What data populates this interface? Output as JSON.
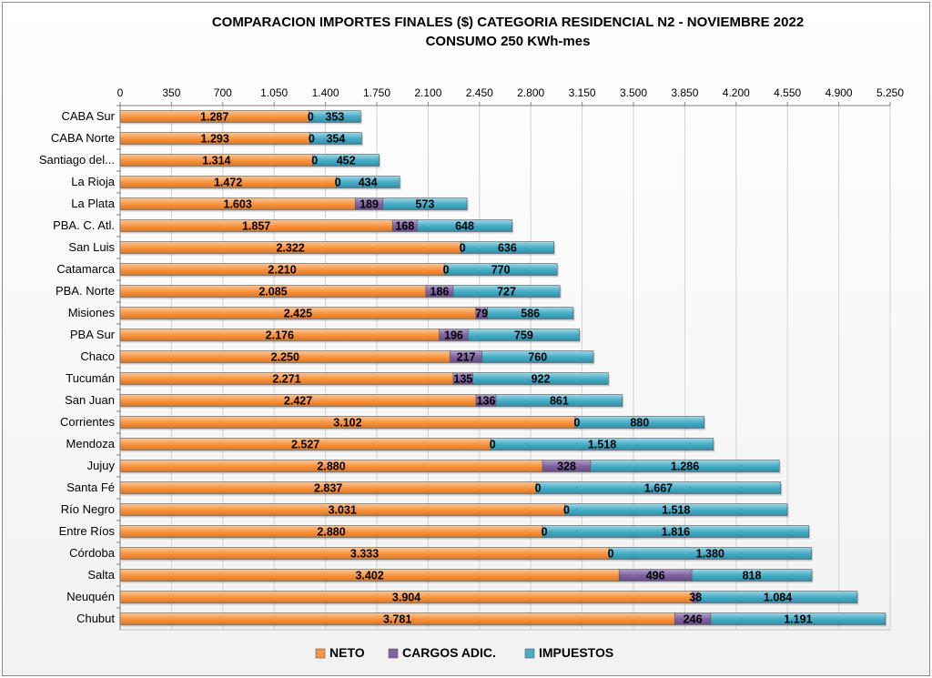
{
  "chart_data": {
    "type": "bar",
    "orientation": "horizontal",
    "stacked": true,
    "title": "COMPARACION IMPORTES FINALES ($) CATEGORIA RESIDENCIAL N2 -  NOVIEMBRE 2022",
    "subtitle": "CONSUMO 250 KWh-mes",
    "xlim": [
      0,
      5250
    ],
    "x_ticks": [
      "0",
      "350",
      "700",
      "1.050",
      "1.400",
      "1.750",
      "2.100",
      "2.450",
      "2.800",
      "3.150",
      "3.500",
      "3.850",
      "4.200",
      "4.550",
      "4.900",
      "5.250"
    ],
    "x_axis_position": "top",
    "grid": true,
    "legend_position": "bottom",
    "categories": [
      "CABA Sur",
      "CABA Norte",
      "Santiago del...",
      "La Rioja",
      "La Plata",
      "PBA. C. Atl.",
      "San Luis",
      "Catamarca",
      "PBA. Norte",
      "Misiones",
      "PBA Sur",
      "Chaco",
      "Tucumán",
      "San Juan",
      "Corrientes",
      "Mendoza",
      "Jujuy",
      "Santa Fé",
      "Río Negro",
      "Entre Ríos",
      "Córdoba",
      "Salta",
      "Neuquén",
      "Chubut"
    ],
    "series": [
      {
        "name": "NETO",
        "color": "#f79646",
        "values": [
          1287,
          1293,
          1314,
          1472,
          1603,
          1857,
          2322,
          2210,
          2085,
          2425,
          2176,
          2250,
          2271,
          2427,
          3102,
          2527,
          2880,
          2837,
          3031,
          2880,
          3333,
          3402,
          3904,
          3781
        ],
        "labels": [
          "1.287",
          "1.293",
          "1.314",
          "1.472",
          "1.603",
          "1.857",
          "2.322",
          "2.210",
          "2.085",
          "2.425",
          "2.176",
          "2.250",
          "2.271",
          "2.427",
          "3.102",
          "2.527",
          "2.880",
          "2.837",
          "3.031",
          "2.880",
          "3.333",
          "3.402",
          "3.904",
          "3.781"
        ]
      },
      {
        "name": "CARGOS ADIC.",
        "color": "#8064a2",
        "values": [
          0,
          0,
          0,
          0,
          189,
          168,
          0,
          0,
          186,
          79,
          196,
          217,
          135,
          136,
          0,
          0,
          328,
          0,
          0,
          0,
          0,
          496,
          38,
          246
        ],
        "labels": [
          "0",
          "0",
          "0",
          "0",
          "189",
          "168",
          "0",
          "0",
          "186",
          "79",
          "196",
          "217",
          "135",
          "136",
          "0",
          "0",
          "328",
          "0",
          "0",
          "0",
          "0",
          "496",
          "38",
          "246"
        ]
      },
      {
        "name": "IMPUESTOS",
        "color": "#4bacc6",
        "values": [
          353,
          354,
          452,
          434,
          573,
          648,
          636,
          770,
          727,
          586,
          759,
          760,
          922,
          861,
          880,
          1518,
          1286,
          1667,
          1518,
          1816,
          1380,
          818,
          1084,
          1191
        ],
        "labels": [
          "353",
          "354",
          "452",
          "434",
          "573",
          "648",
          "636",
          "770",
          "727",
          "586",
          "759",
          "760",
          "922",
          "861",
          "880",
          "1.518",
          "1.286",
          "1.667",
          "1.518",
          "1.816",
          "1.380",
          "818",
          "1.084",
          "1.191"
        ]
      }
    ]
  }
}
